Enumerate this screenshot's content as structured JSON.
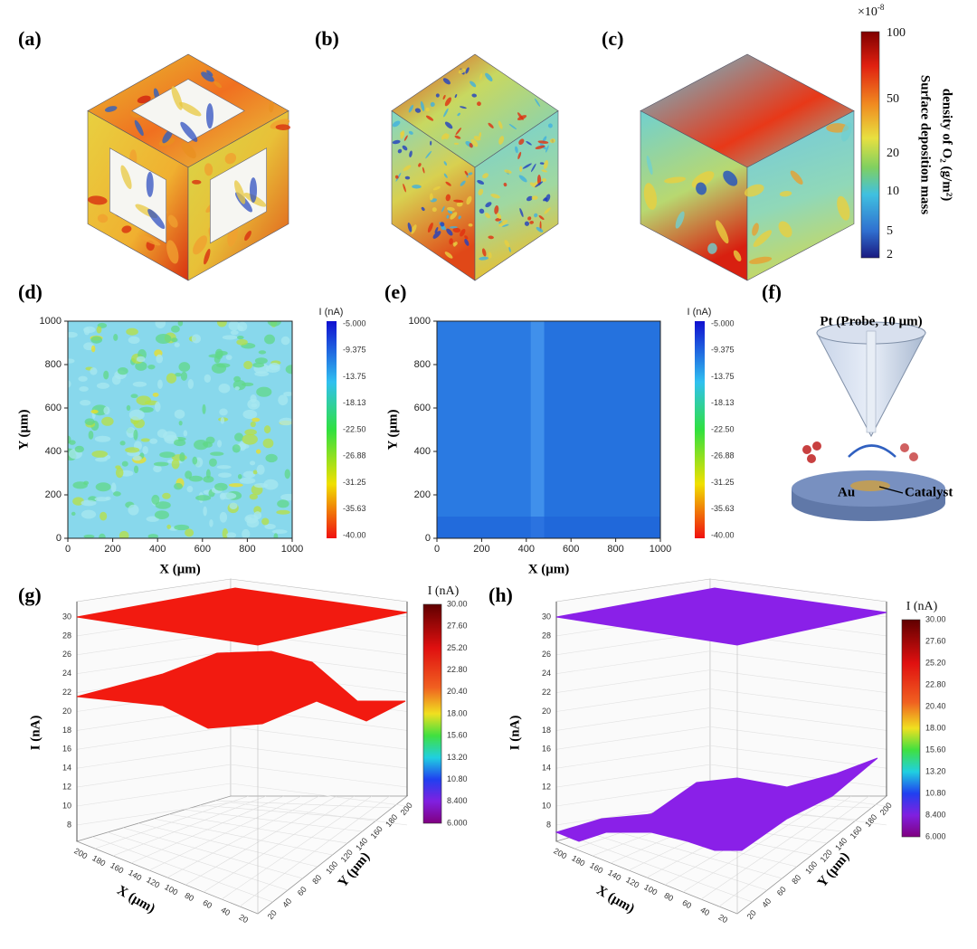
{
  "panels": {
    "a": {
      "label": "(a)"
    },
    "b": {
      "label": "(b)"
    },
    "c": {
      "label": "(c)"
    },
    "colorbar": {
      "multiplier": "×10",
      "exponent": "-8",
      "ticks": [
        "100",
        "50",
        "20",
        "10",
        "5",
        "2"
      ],
      "title": [
        "Surface deposition mass",
        "density of O₂ (g/m²)"
      ]
    },
    "d": {
      "label": "(d)",
      "x_label": "X (μm)",
      "y_label": "Y (μm)",
      "x_ticks": [
        "0",
        "200",
        "400",
        "600",
        "800",
        "1000"
      ],
      "y_ticks": [
        "0",
        "200",
        "400",
        "600",
        "800",
        "1000"
      ],
      "colorbar_title": "I (nA)",
      "colorbar_ticks": [
        "-5.000",
        "-9.375",
        "-13.75",
        "-18.13",
        "-22.50",
        "-26.88",
        "-31.25",
        "-35.63",
        "-40.00"
      ]
    },
    "e": {
      "label": "(e)",
      "x_label": "X (μm)",
      "y_label": "Y (μm)",
      "x_ticks": [
        "0",
        "200",
        "400",
        "600",
        "800",
        "1000"
      ],
      "y_ticks": [
        "0",
        "200",
        "400",
        "600",
        "800",
        "1000"
      ],
      "colorbar_title": "I (nA)",
      "colorbar_ticks": [
        "-5.000",
        "-9.375",
        "-13.75",
        "-18.13",
        "-22.50",
        "-26.88",
        "-31.25",
        "-35.63",
        "-40.00"
      ]
    },
    "f": {
      "label": "(f)",
      "probe": "Pt (Probe, 10 μm)",
      "au": "Au",
      "catalyst": "Catalyst"
    },
    "g": {
      "label": "(g)",
      "z_label": "I (nA)",
      "z_ticks": [
        "30",
        "28",
        "26",
        "24",
        "22",
        "20",
        "18",
        "16",
        "14",
        "12",
        "10",
        "8"
      ],
      "x_label": "X (μm)",
      "x_ticks": [
        "200",
        "180",
        "160",
        "140",
        "120",
        "100",
        "80",
        "60",
        "40",
        "20"
      ],
      "y_label": "Y (μm)",
      "y_ticks": [
        "20",
        "40",
        "60",
        "80",
        "100",
        "120",
        "140",
        "160",
        "180",
        "200"
      ],
      "colorbar_title": "I (nA)",
      "colorbar_ticks": [
        "30.00",
        "27.60",
        "25.20",
        "22.80",
        "20.40",
        "18.00",
        "15.60",
        "13.20",
        "10.80",
        "8.400",
        "6.000"
      ]
    },
    "h": {
      "label": "(h)",
      "z_label": "I (nA)",
      "z_ticks": [
        "30",
        "28",
        "26",
        "24",
        "22",
        "20",
        "18",
        "16",
        "14",
        "12",
        "10",
        "8"
      ],
      "x_label": "X (μm)",
      "x_ticks": [
        "200",
        "180",
        "160",
        "140",
        "120",
        "100",
        "80",
        "60",
        "40",
        "20"
      ],
      "y_label": "Y (μm)",
      "y_ticks": [
        "20",
        "40",
        "60",
        "80",
        "100",
        "120",
        "140",
        "160",
        "180",
        "200"
      ],
      "colorbar_title": "I (nA)",
      "colorbar_ticks": [
        "30.00",
        "27.60",
        "25.20",
        "22.80",
        "20.40",
        "18.00",
        "15.60",
        "13.20",
        "10.80",
        "8.400",
        "6.000"
      ]
    }
  }
}
